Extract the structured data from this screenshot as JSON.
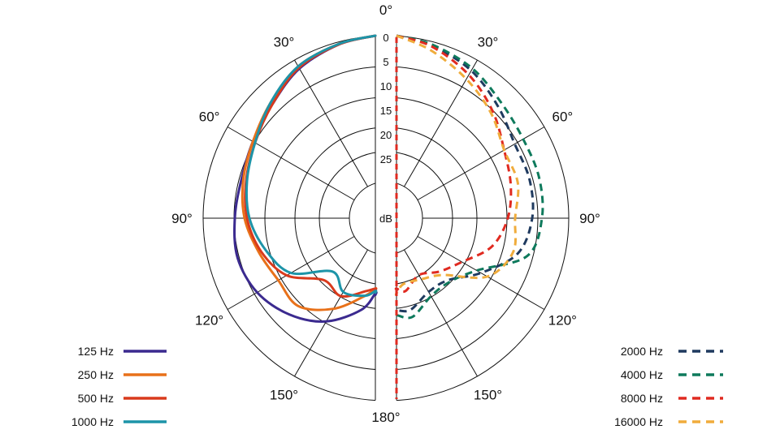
{
  "chart_data": {
    "type": "polar",
    "title": "",
    "radial_unit": "dB",
    "radial_ticks": [
      "0",
      "5",
      "10",
      "15",
      "20",
      "25"
    ],
    "radial_range_db": [
      0,
      30
    ],
    "angle_labels": [
      "0°",
      "30°",
      "60°",
      "90°",
      "120°",
      "150°",
      "180°",
      "30°",
      "60°",
      "90°",
      "120°",
      "150°"
    ],
    "left_half": {
      "series": [
        {
          "name": "125 Hz",
          "color": "#3b2a8f",
          "dash": "solid",
          "points": [
            [
              0,
              0
            ],
            [
              15,
              0.5
            ],
            [
              30,
              2
            ],
            [
              45,
              4.5
            ],
            [
              60,
              6
            ],
            [
              75,
              6.8
            ],
            [
              90,
              6.5
            ],
            [
              105,
              6
            ],
            [
              120,
              7
            ],
            [
              135,
              9.5
            ],
            [
              150,
              13
            ],
            [
              165,
              18
            ],
            [
              175,
              22
            ]
          ]
        },
        {
          "name": "250 Hz",
          "color": "#e8711a",
          "dash": "solid",
          "points": [
            [
              0,
              0
            ],
            [
              15,
              0.4
            ],
            [
              30,
              1.5
            ],
            [
              45,
              4
            ],
            [
              60,
              6
            ],
            [
              75,
              7.2
            ],
            [
              90,
              8.5
            ],
            [
              105,
              10.5
            ],
            [
              120,
              12
            ],
            [
              135,
              12
            ],
            [
              150,
              16
            ],
            [
              165,
              21
            ],
            [
              175,
              23
            ]
          ]
        },
        {
          "name": "500 Hz",
          "color": "#d93a1c",
          "dash": "solid",
          "points": [
            [
              0,
              0
            ],
            [
              15,
              0.5
            ],
            [
              30,
              1.8
            ],
            [
              45,
              4.5
            ],
            [
              60,
              6.5
            ],
            [
              75,
              7.8
            ],
            [
              90,
              9
            ],
            [
              105,
              11
            ],
            [
              120,
              14
            ],
            [
              135,
              19.5
            ],
            [
              150,
              19
            ],
            [
              165,
              22
            ],
            [
              175,
              23
            ]
          ]
        },
        {
          "name": "1000 Hz",
          "color": "#1d94a8",
          "dash": "solid",
          "points": [
            [
              0,
              0
            ],
            [
              15,
              0.4
            ],
            [
              30,
              1.5
            ],
            [
              45,
              4
            ],
            [
              60,
              6.5
            ],
            [
              75,
              8
            ],
            [
              90,
              9.5
            ],
            [
              105,
              12
            ],
            [
              120,
              15
            ],
            [
              135,
              22
            ],
            [
              150,
              20
            ],
            [
              165,
              21
            ],
            [
              175,
              22.5
            ]
          ]
        }
      ]
    },
    "right_half": {
      "series": [
        {
          "name": "2000 Hz",
          "color": "#1f3a5f",
          "dash": "dashed",
          "points": [
            [
              0,
              0
            ],
            [
              15,
              0.8
            ],
            [
              30,
              2.5
            ],
            [
              45,
              5
            ],
            [
              60,
              7
            ],
            [
              75,
              7
            ],
            [
              90,
              7.5
            ],
            [
              105,
              9.5
            ],
            [
              120,
              15
            ],
            [
              135,
              19.5
            ],
            [
              150,
              20
            ],
            [
              165,
              18
            ],
            [
              175,
              18.5
            ]
          ]
        },
        {
          "name": "4000 Hz",
          "color": "#0e7a5c",
          "dash": "dashed",
          "points": [
            [
              0,
              0
            ],
            [
              15,
              0.6
            ],
            [
              30,
              2
            ],
            [
              45,
              4
            ],
            [
              60,
              5
            ],
            [
              75,
              5
            ],
            [
              90,
              5.5
            ],
            [
              105,
              7.5
            ],
            [
              120,
              16
            ],
            [
              135,
              19
            ],
            [
              150,
              19
            ],
            [
              165,
              16.5
            ],
            [
              175,
              17.5
            ]
          ]
        },
        {
          "name": "8000 Hz",
          "color": "#e02a20",
          "dash": "dashed",
          "points": [
            [
              0,
              0
            ],
            [
              15,
              1
            ],
            [
              30,
              3.5
            ],
            [
              45,
              6.5
            ],
            [
              60,
              9.5
            ],
            [
              75,
              11
            ],
            [
              90,
              12.5
            ],
            [
              105,
              15
            ],
            [
              120,
              19.5
            ],
            [
              135,
              22
            ],
            [
              150,
              24
            ],
            [
              165,
              22
            ],
            [
              175,
              23
            ]
          ]
        },
        {
          "name": "16000 Hz",
          "color": "#f0ac3c",
          "dash": "dashed",
          "points": [
            [
              0,
              0
            ],
            [
              15,
              1.8
            ],
            [
              30,
              4.5
            ],
            [
              45,
              7
            ],
            [
              60,
              9.5
            ],
            [
              75,
              9.5
            ],
            [
              90,
              11
            ],
            [
              105,
              10.5
            ],
            [
              120,
              13.5
            ],
            [
              135,
              21
            ],
            [
              150,
              23
            ],
            [
              165,
              23.5
            ],
            [
              175,
              22
            ]
          ]
        }
      ]
    }
  }
}
